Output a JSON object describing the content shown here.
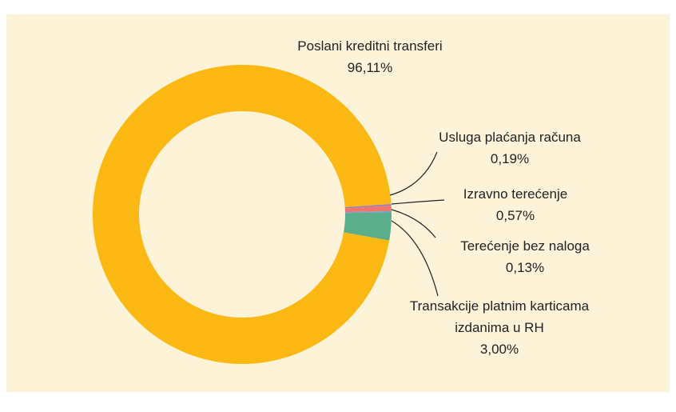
{
  "chart_data": {
    "type": "donut",
    "categories": [
      "Poslani kreditni transferi",
      "Usluga plaćanja računa",
      "Izravno terećenje",
      "Terećenje bez naloga",
      "Transakcije platnim karticama izdanima u RH"
    ],
    "values": [
      96.11,
      0.19,
      0.57,
      0.13,
      3.0
    ],
    "value_labels": [
      "96,11%",
      "0,19%",
      "0,57%",
      "0,13%",
      "3,00%"
    ],
    "colors": [
      "#fdb913",
      "#9b7fc0",
      "#f0756a",
      "#7a9fd6",
      "#5aae8c"
    ]
  }
}
